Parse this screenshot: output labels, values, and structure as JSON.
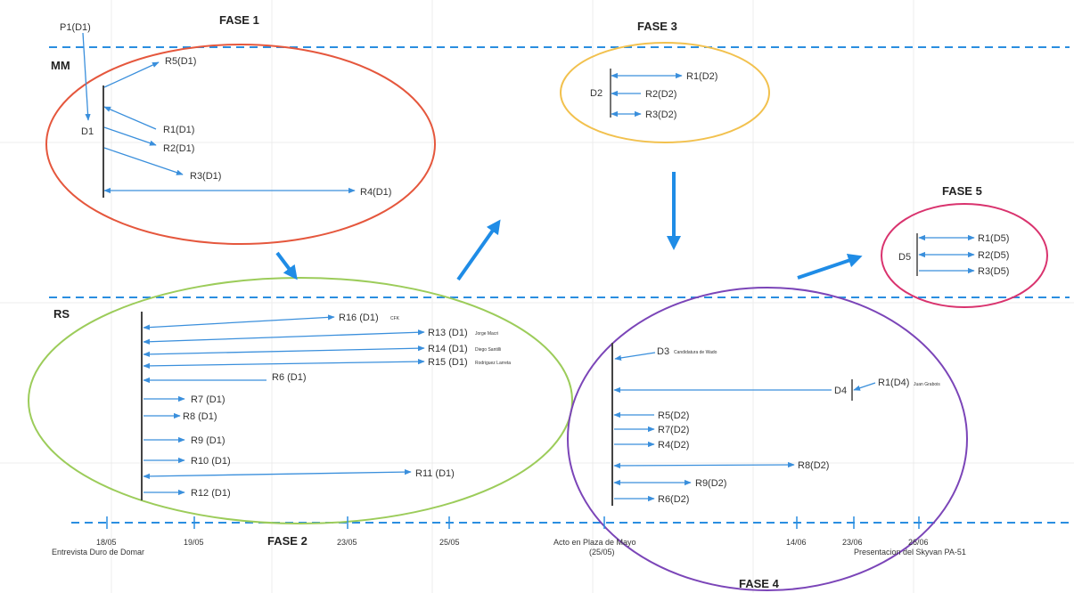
{
  "phases": {
    "f1": "FASE 1",
    "f2": "FASE 2",
    "f3": "FASE 3",
    "f4": "FASE 4",
    "f5": "FASE 5"
  },
  "lanes": {
    "mm": "MM",
    "rs": "RS"
  },
  "colors": {
    "arrow": "#3a8fdc",
    "dashed": "#2a8ee0",
    "phase1": "#e5573d",
    "phase2": "#9ccc5a",
    "phase3": "#f2c14e",
    "phase4": "#7b45b8",
    "phase5": "#d9336e",
    "grid": "#ececec",
    "text": "#333333",
    "bigArrow": "#1f8ce6"
  },
  "phase1": {
    "p1": "P1(D1)",
    "d1": "D1",
    "r5": "R5(D1)",
    "r1": "R1(D1)",
    "r2": "R2(D1)",
    "r3": "R3(D1)",
    "r4": "R4(D1)"
  },
  "phase3": {
    "d2": "D2",
    "r1": "R1(D2)",
    "r2": "R2(D2)",
    "r3": "R3(D2)"
  },
  "phase5": {
    "d5": "D5",
    "r1": "R1(D5)",
    "r2": "R2(D5)",
    "r3": "R3(D5)"
  },
  "phase2": {
    "r16": "R16 (D1)",
    "r16_note": "CFK",
    "r13": "R13 (D1)",
    "r13_note": "Jorge Macri",
    "r14": "R14 (D1)",
    "r14_note": "Diego Santilli",
    "r15": "R15 (D1)",
    "r15_note": "Rodriguez Larreta",
    "r6": "R6 (D1)",
    "r7": "R7 (D1)",
    "r8": "R8 (D1)",
    "r9": "R9 (D1)",
    "r10": "R10 (D1)",
    "r11": "R11 (D1)",
    "r12": "R12 (D1)"
  },
  "phase4": {
    "d3": "D3",
    "d3_note": "Candidatura de Wado",
    "d4": "D4",
    "r1d4": "R1(D4)",
    "r1d4_note": "Juan Grabois",
    "r5": "R5(D2)",
    "r7": "R7(D2)",
    "r4": "R4(D2)",
    "r8": "R8(D2)",
    "r9": "R9(D2)",
    "r6": "R6(D2)"
  },
  "timeline": {
    "d1805": "18/05",
    "e1805": "Entrevista Duro de Domar",
    "d1905": "19/05",
    "d2305": "23/05",
    "d2505": "25/05",
    "acto1": "Acto en Plaza de Mayo",
    "acto2": "(25/05)",
    "d1406": "14/06",
    "d2306": "23/06",
    "d2606": "26/06",
    "e2606": "Presentacion del Skyvan PA-51"
  }
}
